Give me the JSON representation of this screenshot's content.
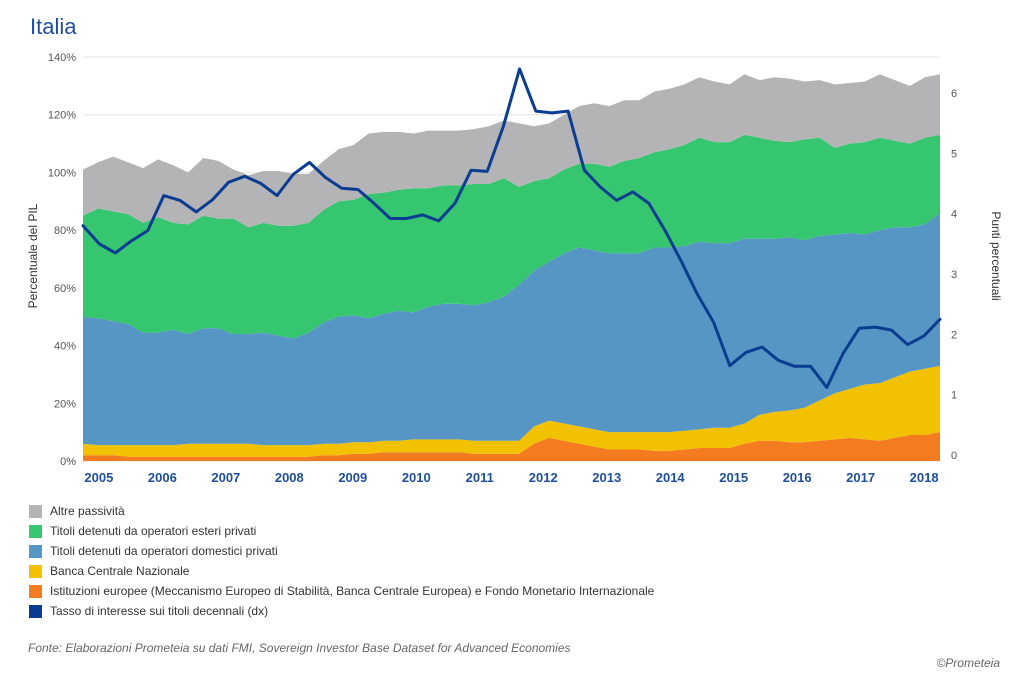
{
  "chart_data": {
    "type": "area",
    "title": "Italia",
    "ylabel_left": "Percentuale del PIL",
    "ylabel_right": "Punti percentuali",
    "ylim_left": [
      0,
      140
    ],
    "ylim_right": [
      0,
      6.5
    ],
    "yticks_left": [
      "0%",
      "20%",
      "40%",
      "60%",
      "80%",
      "100%",
      "120%",
      "140%"
    ],
    "yticks_right": [
      "0",
      "1",
      "2",
      "3",
      "4",
      "5",
      "6"
    ],
    "x_labels": [
      "2005",
      "2006",
      "2007",
      "2008",
      "2009",
      "2010",
      "2011",
      "2012",
      "2013",
      "2014",
      "2015",
      "2016",
      "2017",
      "2018"
    ],
    "x_start": 2004.75,
    "x_end": 2018.25,
    "series": [
      {
        "name": "Istituzioni europee (Meccanismo Europeo di Stabilità, Banca Centrale Europea) e Fondo Monetario Internazionale",
        "color": "#f47b20",
        "values": [
          2,
          2,
          2,
          1.5,
          1.5,
          1.5,
          1.5,
          1.5,
          1.5,
          1.5,
          1.5,
          1.5,
          1.5,
          1.5,
          1.5,
          1.5,
          2,
          2,
          2.5,
          2.5,
          3,
          3,
          3,
          3,
          3,
          3,
          2.5,
          2.5,
          2.5,
          2.5,
          6,
          8,
          7,
          6,
          5,
          4,
          4,
          4,
          3.5,
          3.5,
          4,
          4.5,
          4.5,
          4.5,
          6,
          7,
          7,
          6.5,
          6.5,
          7,
          7.5,
          8,
          7.5,
          7,
          8,
          9,
          9,
          10
        ]
      },
      {
        "name": "Banca Centrale Nazionale",
        "color": "#f2c100",
        "values": [
          4,
          3.5,
          3.5,
          4,
          4,
          4,
          4,
          4.5,
          4.5,
          4.5,
          4.5,
          4.5,
          4,
          4,
          4,
          4,
          4,
          4,
          4,
          4,
          4,
          4,
          4.5,
          4.5,
          4.5,
          4.5,
          4.5,
          4.5,
          4.5,
          4.5,
          6,
          6,
          6,
          6,
          6,
          6,
          6,
          6,
          6.5,
          6.5,
          6.5,
          6.5,
          7,
          7,
          7,
          9,
          10,
          11,
          12,
          14,
          16,
          17,
          19,
          20,
          21,
          22,
          23,
          23
        ]
      },
      {
        "name": "Titoli detenuti da operatori domestici privati",
        "color": "#5596c4",
        "values": [
          44,
          44,
          43,
          42,
          39,
          39,
          40,
          38,
          40,
          40,
          38,
          38,
          39,
          38,
          37,
          39,
          42,
          44,
          44,
          43,
          44,
          45,
          44,
          46,
          47,
          47,
          47,
          48,
          50,
          54,
          54,
          55,
          59,
          62,
          62,
          62,
          62,
          62,
          64,
          64,
          64,
          65,
          64,
          64,
          64,
          61,
          60,
          60,
          58,
          57,
          55,
          54,
          52,
          53,
          52,
          50,
          50,
          53
        ]
      },
      {
        "name": "Titoli detenuti da operatori esteri privati",
        "color": "#36c66f",
        "values": [
          35,
          38,
          38,
          38,
          38,
          40,
          37,
          38,
          39,
          38,
          40,
          37,
          38,
          38,
          39,
          38,
          39,
          40,
          40,
          43,
          42,
          42,
          43,
          41,
          41,
          41,
          42,
          41,
          41,
          34,
          31,
          29,
          29,
          29,
          30,
          30,
          32,
          33,
          33,
          34,
          35,
          36,
          35,
          35,
          36,
          35,
          34,
          33,
          35,
          34,
          30,
          31,
          32,
          32,
          30,
          29,
          30,
          27
        ]
      },
      {
        "name": "Altre passività",
        "color": "#b4b4b6",
        "values": [
          16,
          16,
          19,
          18,
          19,
          20,
          20,
          18,
          20,
          20,
          17,
          18,
          18,
          19,
          18,
          17,
          17,
          18,
          19,
          21,
          21,
          20,
          19,
          20,
          19,
          19,
          19,
          20,
          20,
          22,
          19,
          19,
          19,
          20,
          21,
          21,
          21,
          20,
          21,
          21,
          21,
          21,
          21,
          20,
          21,
          20,
          22,
          22,
          20,
          20,
          22,
          21,
          21,
          22,
          21,
          20,
          21,
          21
        ]
      },
      {
        "name": "Tasso di interesse sui titoli decennali (dx)",
        "color": "#0a3d91",
        "type": "line",
        "values": [
          3.8,
          3.5,
          3.35,
          3.55,
          3.72,
          4.3,
          4.22,
          4.03,
          4.23,
          4.52,
          4.62,
          4.5,
          4.3,
          4.65,
          4.85,
          4.6,
          4.42,
          4.4,
          4.17,
          3.92,
          3.92,
          3.98,
          3.88,
          4.17,
          4.72,
          4.7,
          5.45,
          6.4,
          5.7,
          5.67,
          5.7,
          4.72,
          4.44,
          4.22,
          4.36,
          4.17,
          3.72,
          3.21,
          2.66,
          2.2,
          1.48,
          1.7,
          1.79,
          1.57,
          1.47,
          1.47,
          1.12,
          1.68,
          2.1,
          2.12,
          2.07,
          1.83,
          1.97,
          2.25
        ]
      }
    ],
    "legend_position": "bottom-left",
    "grid": true
  },
  "legend": [
    {
      "label": "Altre passività",
      "color": "#b4b4b6"
    },
    {
      "label": "Titoli detenuti da operatori esteri privati",
      "color": "#36c66f"
    },
    {
      "label": "Titoli detenuti da operatori domestici privati",
      "color": "#5596c4"
    },
    {
      "label": "Banca Centrale Nazionale",
      "color": "#f2c100"
    },
    {
      "label": "Istituzioni europee (Meccanismo Europeo di Stabilità, Banca Centrale Europea) e Fondo Monetario Internazionale",
      "color": "#f47b20"
    },
    {
      "label": "Tasso di interesse sui titoli decennali (dx)",
      "color": "#0a3d91"
    }
  ],
  "source": "Fonte: Elaborazioni Prometeia su dati FMI, Sovereign Investor Base Dataset for Advanced Economies",
  "copyright": "©Prometeia"
}
